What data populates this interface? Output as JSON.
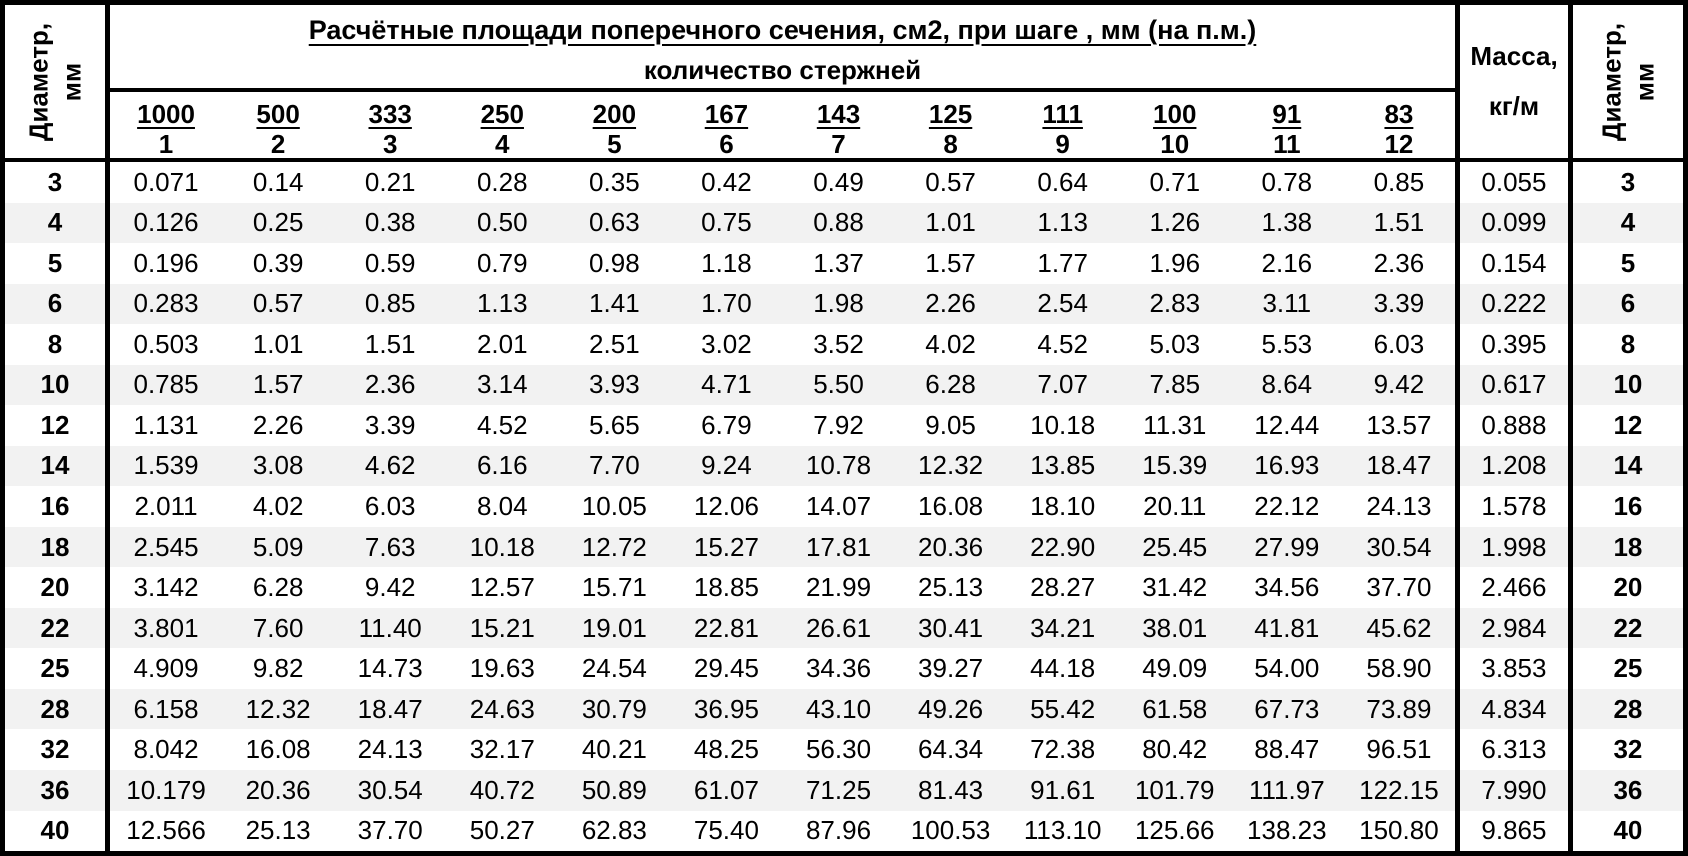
{
  "table": {
    "corner_header_line1": "Диаметр,",
    "corner_header_line2": "мм",
    "title": "Расчётные площади поперечного сечения, см2, при шаге , мм (на п.м.)",
    "subtitle": "количество стержней",
    "mass_header_line1": "Масса,",
    "mass_header_line2": "кг/м",
    "spacings": [
      "1000",
      "500",
      "333",
      "250",
      "200",
      "167",
      "143",
      "125",
      "111",
      "100",
      "91",
      "83"
    ],
    "counts": [
      "1",
      "2",
      "3",
      "4",
      "5",
      "6",
      "7",
      "8",
      "9",
      "10",
      "11",
      "12"
    ],
    "rows": [
      {
        "diameter": "3",
        "areas": [
          "0.071",
          "0.14",
          "0.21",
          "0.28",
          "0.35",
          "0.42",
          "0.49",
          "0.57",
          "0.64",
          "0.71",
          "0.78",
          "0.85"
        ],
        "mass": "0.055"
      },
      {
        "diameter": "4",
        "areas": [
          "0.126",
          "0.25",
          "0.38",
          "0.50",
          "0.63",
          "0.75",
          "0.88",
          "1.01",
          "1.13",
          "1.26",
          "1.38",
          "1.51"
        ],
        "mass": "0.099"
      },
      {
        "diameter": "5",
        "areas": [
          "0.196",
          "0.39",
          "0.59",
          "0.79",
          "0.98",
          "1.18",
          "1.37",
          "1.57",
          "1.77",
          "1.96",
          "2.16",
          "2.36"
        ],
        "mass": "0.154"
      },
      {
        "diameter": "6",
        "areas": [
          "0.283",
          "0.57",
          "0.85",
          "1.13",
          "1.41",
          "1.70",
          "1.98",
          "2.26",
          "2.54",
          "2.83",
          "3.11",
          "3.39"
        ],
        "mass": "0.222"
      },
      {
        "diameter": "8",
        "areas": [
          "0.503",
          "1.01",
          "1.51",
          "2.01",
          "2.51",
          "3.02",
          "3.52",
          "4.02",
          "4.52",
          "5.03",
          "5.53",
          "6.03"
        ],
        "mass": "0.395"
      },
      {
        "diameter": "10",
        "areas": [
          "0.785",
          "1.57",
          "2.36",
          "3.14",
          "3.93",
          "4.71",
          "5.50",
          "6.28",
          "7.07",
          "7.85",
          "8.64",
          "9.42"
        ],
        "mass": "0.617"
      },
      {
        "diameter": "12",
        "areas": [
          "1.131",
          "2.26",
          "3.39",
          "4.52",
          "5.65",
          "6.79",
          "7.92",
          "9.05",
          "10.18",
          "11.31",
          "12.44",
          "13.57"
        ],
        "mass": "0.888"
      },
      {
        "diameter": "14",
        "areas": [
          "1.539",
          "3.08",
          "4.62",
          "6.16",
          "7.70",
          "9.24",
          "10.78",
          "12.32",
          "13.85",
          "15.39",
          "16.93",
          "18.47"
        ],
        "mass": "1.208"
      },
      {
        "diameter": "16",
        "areas": [
          "2.011",
          "4.02",
          "6.03",
          "8.04",
          "10.05",
          "12.06",
          "14.07",
          "16.08",
          "18.10",
          "20.11",
          "22.12",
          "24.13"
        ],
        "mass": "1.578"
      },
      {
        "diameter": "18",
        "areas": [
          "2.545",
          "5.09",
          "7.63",
          "10.18",
          "12.72",
          "15.27",
          "17.81",
          "20.36",
          "22.90",
          "25.45",
          "27.99",
          "30.54"
        ],
        "mass": "1.998"
      },
      {
        "diameter": "20",
        "areas": [
          "3.142",
          "6.28",
          "9.42",
          "12.57",
          "15.71",
          "18.85",
          "21.99",
          "25.13",
          "28.27",
          "31.42",
          "34.56",
          "37.70"
        ],
        "mass": "2.466"
      },
      {
        "diameter": "22",
        "areas": [
          "3.801",
          "7.60",
          "11.40",
          "15.21",
          "19.01",
          "22.81",
          "26.61",
          "30.41",
          "34.21",
          "38.01",
          "41.81",
          "45.62"
        ],
        "mass": "2.984"
      },
      {
        "diameter": "25",
        "areas": [
          "4.909",
          "9.82",
          "14.73",
          "19.63",
          "24.54",
          "29.45",
          "34.36",
          "39.27",
          "44.18",
          "49.09",
          "54.00",
          "58.90"
        ],
        "mass": "3.853"
      },
      {
        "diameter": "28",
        "areas": [
          "6.158",
          "12.32",
          "18.47",
          "24.63",
          "30.79",
          "36.95",
          "43.10",
          "49.26",
          "55.42",
          "61.58",
          "67.73",
          "73.89"
        ],
        "mass": "4.834"
      },
      {
        "diameter": "32",
        "areas": [
          "8.042",
          "16.08",
          "24.13",
          "32.17",
          "40.21",
          "48.25",
          "56.30",
          "64.34",
          "72.38",
          "80.42",
          "88.47",
          "96.51"
        ],
        "mass": "6.313"
      },
      {
        "diameter": "36",
        "areas": [
          "10.179",
          "20.36",
          "30.54",
          "40.72",
          "50.89",
          "61.07",
          "71.25",
          "81.43",
          "91.61",
          "101.79",
          "111.97",
          "122.15"
        ],
        "mass": "7.990"
      },
      {
        "diameter": "40",
        "areas": [
          "12.566",
          "25.13",
          "37.70",
          "50.27",
          "62.83",
          "75.40",
          "87.96",
          "100.53",
          "113.10",
          "125.66",
          "138.23",
          "150.80"
        ],
        "mass": "9.865"
      }
    ]
  },
  "colors": {
    "border": "#000000",
    "zebra_stripe": "#f2f2f2",
    "background": "#ffffff",
    "text": "#000000"
  }
}
